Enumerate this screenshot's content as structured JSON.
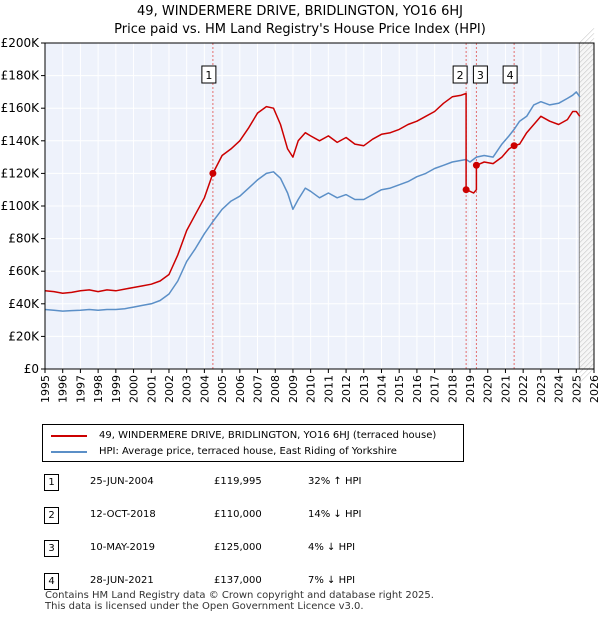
{
  "chart_data": {
    "type": "line",
    "title": "49, WINDERMERE DRIVE, BRIDLINGTON, YO16 6HJ",
    "subtitle": "Price paid vs. HM Land Registry's House Price Index (HPI)",
    "x_range": [
      1995,
      2026
    ],
    "ylim": [
      0,
      200000
    ],
    "y_ticks": [
      {
        "value": 0,
        "label": "£0"
      },
      {
        "value": 20000,
        "label": "£20K"
      },
      {
        "value": 40000,
        "label": "£40K"
      },
      {
        "value": 60000,
        "label": "£60K"
      },
      {
        "value": 80000,
        "label": "£80K"
      },
      {
        "value": 100000,
        "label": "£100K"
      },
      {
        "value": 120000,
        "label": "£120K"
      },
      {
        "value": 140000,
        "label": "£140K"
      },
      {
        "value": 160000,
        "label": "£160K"
      },
      {
        "value": 180000,
        "label": "£180K"
      },
      {
        "value": 200000,
        "label": "£200K"
      }
    ],
    "x_ticks": [
      "1995",
      "1996",
      "1997",
      "1998",
      "1999",
      "2000",
      "2001",
      "2002",
      "2003",
      "2004",
      "2005",
      "2006",
      "2007",
      "2008",
      "2009",
      "2010",
      "2011",
      "2012",
      "2013",
      "2014",
      "2015",
      "2016",
      "2017",
      "2018",
      "2019",
      "2020",
      "2021",
      "2022",
      "2023",
      "2024",
      "2025",
      "2026"
    ],
    "grid": true,
    "series": [
      {
        "name": "49, WINDERMERE DRIVE, BRIDLINGTON, YO16 6HJ (terraced house)",
        "color": "#cc0000",
        "x": [
          1995.0,
          1995.5,
          1996.0,
          1996.5,
          1997.0,
          1997.5,
          1998.0,
          1998.5,
          1999.0,
          1999.5,
          2000.0,
          2000.5,
          2001.0,
          2001.5,
          2002.0,
          2002.5,
          2003.0,
          2003.5,
          2004.0,
          2004.48,
          2004.48,
          2005.0,
          2005.5,
          2006.0,
          2006.5,
          2007.0,
          2007.5,
          2007.9,
          2008.3,
          2008.7,
          2009.0,
          2009.3,
          2009.7,
          2010.0,
          2010.5,
          2011.0,
          2011.5,
          2012.0,
          2012.5,
          2013.0,
          2013.5,
          2014.0,
          2014.5,
          2015.0,
          2015.5,
          2016.0,
          2016.5,
          2017.0,
          2017.5,
          2018.0,
          2018.5,
          2018.78,
          2018.78,
          2019.0,
          2019.2,
          2019.36,
          2019.36,
          2019.8,
          2020.3,
          2020.8,
          2021.2,
          2021.49,
          2021.49,
          2021.8,
          2022.2,
          2022.6,
          2023.0,
          2023.5,
          2024.0,
          2024.5,
          2024.8,
          2025.0,
          2025.2
        ],
        "y": [
          48000,
          47500,
          46500,
          47000,
          48000,
          48500,
          47500,
          48500,
          48000,
          49000,
          50000,
          51000,
          52000,
          54000,
          58000,
          70000,
          85000,
          95000,
          105000,
          119995,
          119995,
          131000,
          135000,
          140000,
          148000,
          157000,
          161000,
          160000,
          150000,
          135000,
          130000,
          140000,
          145000,
          143000,
          140000,
          143000,
          139000,
          142000,
          138000,
          137000,
          141000,
          144000,
          145000,
          147000,
          150000,
          152000,
          155000,
          158000,
          163000,
          167000,
          168000,
          169000,
          110000,
          109000,
          108000,
          110000,
          125000,
          127000,
          126000,
          130000,
          135000,
          137000,
          137000,
          138000,
          145000,
          150000,
          155000,
          152000,
          150000,
          153000,
          158000,
          158000,
          155000
        ]
      },
      {
        "name": "HPI: Average price, terraced house, East Riding of Yorkshire",
        "color": "#5b8fc7",
        "x": [
          1995.0,
          1995.5,
          1996.0,
          1996.5,
          1997.0,
          1997.5,
          1998.0,
          1998.5,
          1999.0,
          1999.5,
          2000.0,
          2000.5,
          2001.0,
          2001.5,
          2002.0,
          2002.5,
          2003.0,
          2003.5,
          2004.0,
          2004.48,
          2005.0,
          2005.5,
          2006.0,
          2006.5,
          2007.0,
          2007.5,
          2007.9,
          2008.3,
          2008.7,
          2009.0,
          2009.3,
          2009.7,
          2010.0,
          2010.5,
          2011.0,
          2011.5,
          2012.0,
          2012.5,
          2013.0,
          2013.5,
          2014.0,
          2014.5,
          2015.0,
          2015.5,
          2016.0,
          2016.5,
          2017.0,
          2017.5,
          2018.0,
          2018.5,
          2018.78,
          2019.0,
          2019.36,
          2019.8,
          2020.3,
          2020.8,
          2021.2,
          2021.49,
          2021.8,
          2022.2,
          2022.6,
          2023.0,
          2023.5,
          2024.0,
          2024.5,
          2024.8,
          2025.0,
          2025.2
        ],
        "y": [
          36500,
          36000,
          35500,
          35800,
          36000,
          36500,
          36000,
          36500,
          36500,
          37000,
          38000,
          39000,
          40000,
          42000,
          46000,
          54000,
          66000,
          74000,
          83000,
          90500,
          98000,
          103000,
          106000,
          111000,
          116000,
          120000,
          121000,
          117000,
          108000,
          98000,
          104000,
          111000,
          109000,
          105000,
          108000,
          105000,
          107000,
          104000,
          104000,
          107000,
          110000,
          111000,
          113000,
          115000,
          118000,
          120000,
          123000,
          125000,
          127000,
          128000,
          128500,
          127000,
          130000,
          131000,
          130000,
          138000,
          143000,
          147000,
          152000,
          155000,
          162000,
          164000,
          162000,
          163000,
          166000,
          168000,
          170000,
          167000
        ]
      }
    ],
    "transactions": [
      {
        "label": "1",
        "date": "25-JUN-2004",
        "x": 2004.48,
        "price_value": 119995,
        "price": "£119,995",
        "hpi": "32% ↑ HPI"
      },
      {
        "label": "2",
        "date": "12-OCT-2018",
        "x": 2018.78,
        "price_value": 110000,
        "price": "£110,000",
        "hpi": "14% ↓ HPI"
      },
      {
        "label": "3",
        "date": "10-MAY-2019",
        "x": 2019.36,
        "price_value": 125000,
        "price": "£125,000",
        "hpi": "4% ↓ HPI"
      },
      {
        "label": "4",
        "date": "28-JUN-2021",
        "x": 2021.49,
        "price_value": 137000,
        "price": "£137,000",
        "hpi": "7% ↓ HPI"
      }
    ],
    "forecast_from": 2025.17,
    "colors": {
      "shade": "#eef2fb",
      "vline": "#e36e6e",
      "grid": "#ffffff",
      "hatch": "#aaaaaa"
    }
  },
  "footer": {
    "line1": "Contains HM Land Registry data © Crown copyright and database right 2025.",
    "line2": "This data is licensed under the Open Government Licence v3.0."
  }
}
